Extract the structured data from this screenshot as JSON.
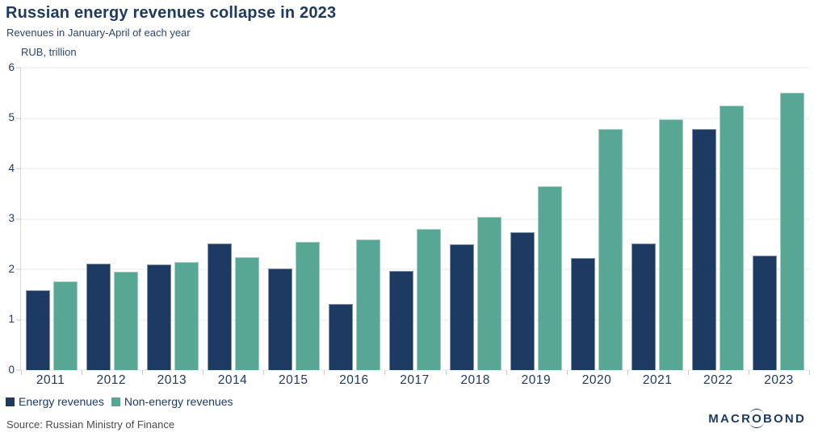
{
  "header": {
    "title": "Russian energy revenues collapse in 2023",
    "subtitle": "Revenues in January-April of each year"
  },
  "chart_data": {
    "type": "bar",
    "title": "Russian energy revenues collapse in 2023",
    "subtitle": "Revenues in January-April of each year",
    "unit_label": "RUB, trillion",
    "categories": [
      "2011",
      "2012",
      "2013",
      "2014",
      "2015",
      "2016",
      "2017",
      "2018",
      "2019",
      "2020",
      "2021",
      "2022",
      "2023"
    ],
    "series": [
      {
        "name": "Energy revenues",
        "color": "#1d3a63",
        "values": [
          1.59,
          2.11,
          2.09,
          2.52,
          2.02,
          1.32,
          1.97,
          2.5,
          2.73,
          2.22,
          2.52,
          4.79,
          2.28
        ]
      },
      {
        "name": "Non-energy revenues",
        "color": "#58a694",
        "values": [
          1.76,
          1.95,
          2.14,
          2.24,
          2.54,
          2.6,
          2.8,
          3.04,
          3.65,
          4.78,
          4.98,
          5.25,
          5.51
        ]
      }
    ],
    "ylim": [
      0,
      6
    ],
    "yticks": [
      0,
      1,
      2,
      3,
      4,
      5,
      6
    ],
    "grid": true,
    "legend_position": "bottom-left"
  },
  "footer": {
    "source": "Source: Russian Ministry of Finance",
    "brand": "MACROBOND"
  },
  "colors": {
    "title_text": "#1d3a63",
    "energy_bar": "#1d3a63",
    "non_energy_bar": "#58a694",
    "gridline": "#eaeaea",
    "axis_tick": "#c9c9c9",
    "source_text": "#4b4b4b"
  }
}
